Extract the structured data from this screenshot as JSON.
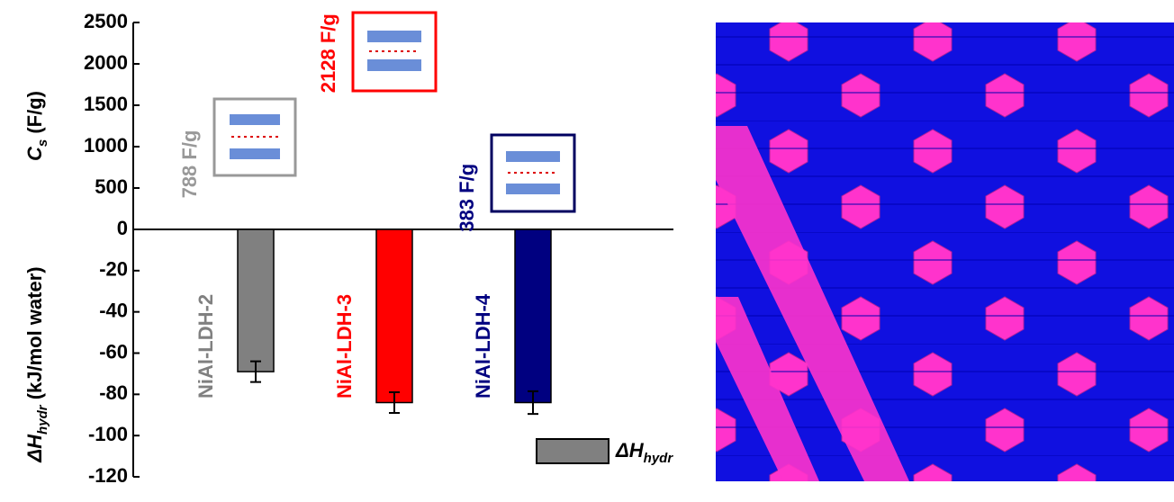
{
  "chart_data": {
    "type": "bar",
    "categories": [
      "NiAl-LDH-2",
      "NiAl-LDH-3",
      "NiAl-LDH-4"
    ],
    "category_colors": [
      "#808080",
      "#ff0000",
      "#000080"
    ],
    "series": [
      {
        "name": [
          "ΔH",
          "hydr"
        ],
        "color": "#808080",
        "values": [
          -69,
          -84,
          -84
        ],
        "errors": [
          5,
          5,
          5.5
        ]
      },
      {
        "axis": "y2",
        "values": [
          788,
          2128,
          383
        ],
        "value_labels": [
          "788 F/g",
          "2128 F/g",
          "383 F/g"
        ],
        "colors": [
          "#999999",
          "#ff0000",
          "#000080"
        ]
      }
    ],
    "y_label": [
      "ΔH",
      "hydr",
      " (kJ/mol water)"
    ],
    "y2_label": [
      "C",
      "s",
      " (F/g)"
    ],
    "ylim": [
      -120,
      0
    ],
    "yticks": [
      0,
      -20,
      -40,
      -60,
      -80,
      -100,
      -120
    ],
    "y2lim": [
      0,
      2500
    ],
    "y2ticks": [
      500,
      1000,
      1500,
      2000,
      2500
    ],
    "legend": "bottom-right"
  }
}
